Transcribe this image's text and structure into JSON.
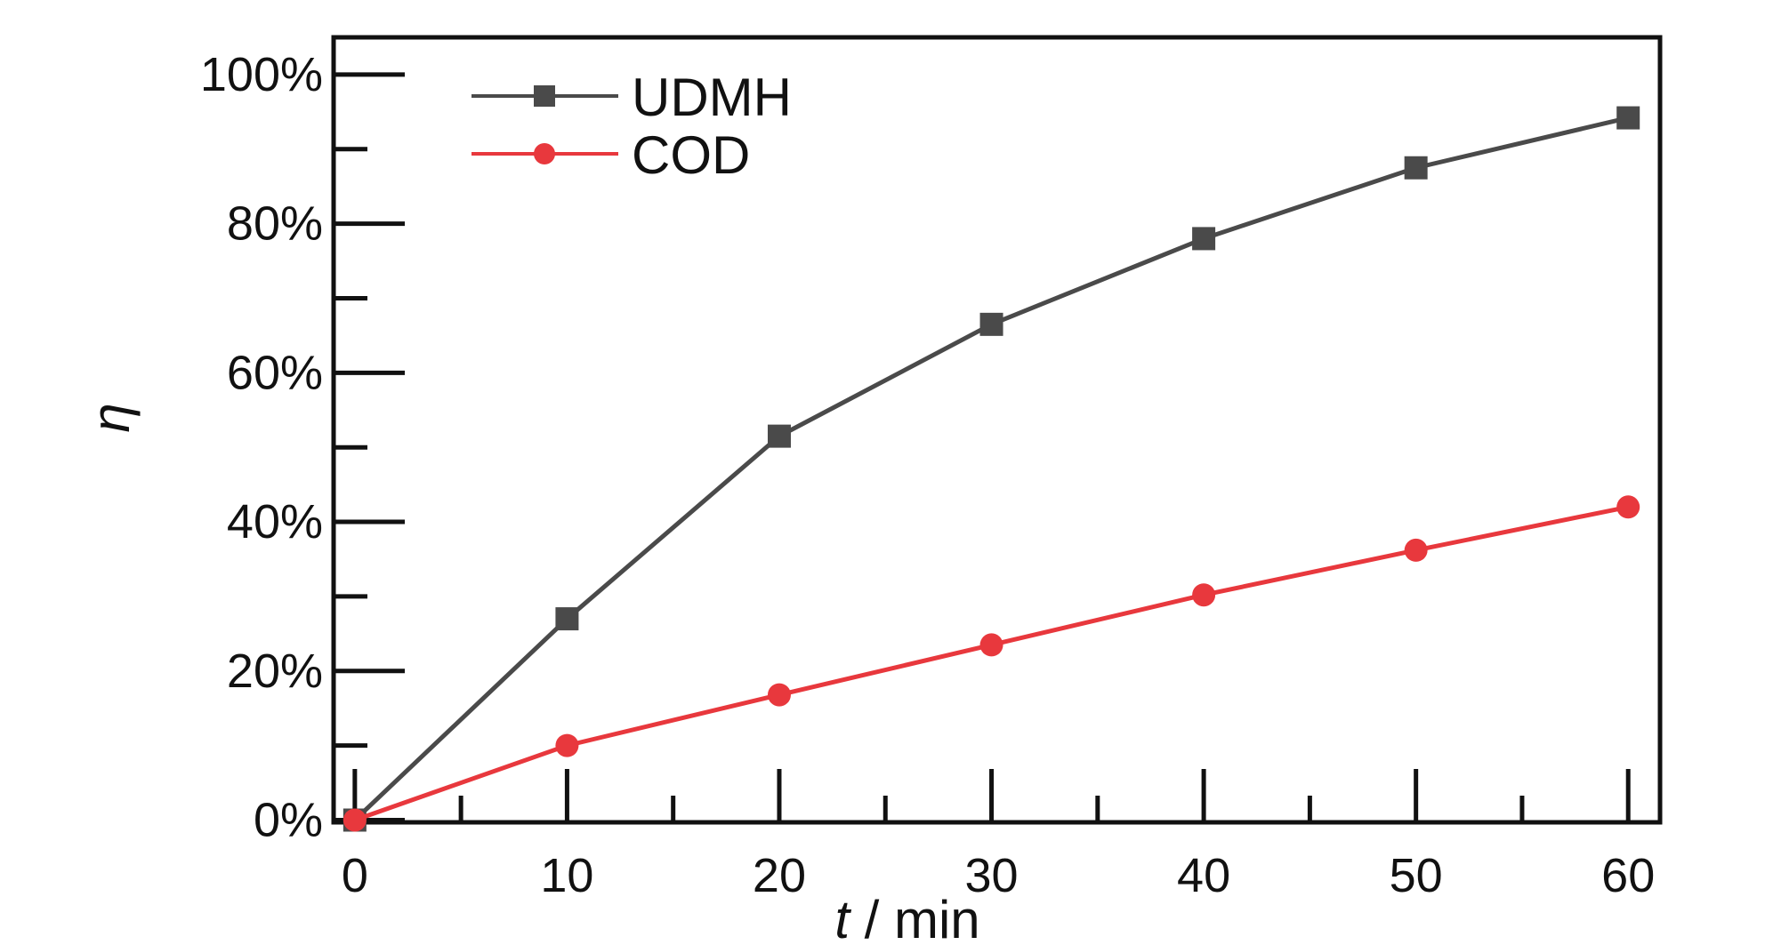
{
  "chart_data": {
    "type": "line",
    "xlabel": {
      "italic": "t",
      "rest": " / min"
    },
    "ylabel": "η",
    "xlim": [
      -1,
      61.5
    ],
    "ylim": [
      -0.3,
      105
    ],
    "x_ticks": [
      0,
      10,
      20,
      30,
      40,
      50,
      60
    ],
    "x_tick_labels": [
      "0",
      "10",
      "20",
      "30",
      "40",
      "50",
      "60"
    ],
    "x_minor_ticks": [
      5,
      15,
      25,
      35,
      45,
      55
    ],
    "y_ticks": [
      0,
      20,
      40,
      60,
      80,
      100
    ],
    "y_tick_labels": [
      "0%",
      "20%",
      "40%",
      "60%",
      "80%",
      "100%"
    ],
    "y_minor_ticks": [
      10,
      30,
      50,
      70,
      90
    ],
    "grid": false,
    "legend_position": "top-left",
    "x": [
      0,
      10,
      20,
      30,
      40,
      50,
      60
    ],
    "series": [
      {
        "name": "UDMH",
        "color": "#4a4a4a",
        "marker": "square",
        "values": [
          0,
          27,
          51.5,
          66.5,
          78,
          87.5,
          94.2
        ]
      },
      {
        "name": "COD",
        "color": "#e8383d",
        "marker": "circle",
        "values": [
          0,
          10,
          16.8,
          23.5,
          30.2,
          36.2,
          42
        ]
      }
    ]
  }
}
